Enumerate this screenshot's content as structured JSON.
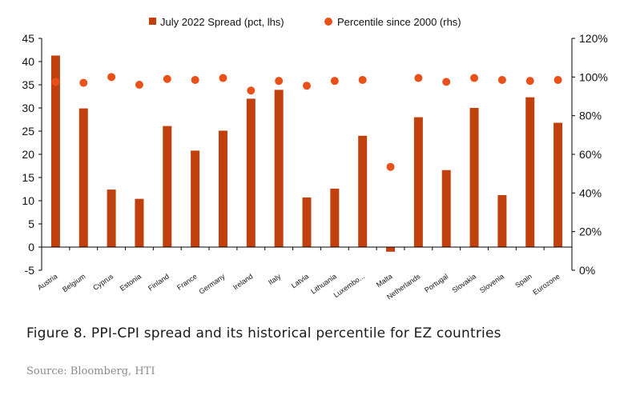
{
  "chart_data": {
    "type": "bar",
    "categories": [
      "Austria",
      "Belgium",
      "Cyprus",
      "Estonia",
      "Finland",
      "France",
      "Germany",
      "Ireland",
      "Italy",
      "Latvia",
      "Lithuania",
      "Luxembo...",
      "Malta",
      "Netherlands",
      "Portugal",
      "Slovakia",
      "Slovenia",
      "Spain",
      "Eurozone"
    ],
    "series": [
      {
        "name": "July 2022 Spread (pct, lhs)",
        "type": "bar",
        "axis": "left",
        "color": "#C0400E",
        "values": [
          41.3,
          29.9,
          12.4,
          10.4,
          26.1,
          20.8,
          25.1,
          32.0,
          33.9,
          10.7,
          12.6,
          24.0,
          -1.0,
          28.0,
          16.6,
          30.0,
          11.2,
          32.3,
          26.8
        ]
      },
      {
        "name": "Percentile since 2000 (rhs)",
        "type": "scatter",
        "axis": "right",
        "color": "#E8511A",
        "values": [
          97.5,
          97,
          100,
          96,
          99,
          98.5,
          99.5,
          93,
          98,
          95.5,
          98,
          98.5,
          53.5,
          99.5,
          97.5,
          99.5,
          98.5,
          98,
          98.5
        ]
      }
    ],
    "ylim": [
      -5,
      45
    ],
    "y_ticks": [
      -5,
      0,
      5,
      10,
      15,
      20,
      25,
      30,
      35,
      40,
      45
    ],
    "y2lim": [
      0,
      120
    ],
    "y2_ticks": [
      "0%",
      "20%",
      "40%",
      "60%",
      "80%",
      "100%",
      "120%"
    ],
    "grid": false,
    "legend_position": "top"
  },
  "caption": {
    "title": "Figure 8. PPI-CPI spread and its historical percentile for EZ countries",
    "source": "Source: Bloomberg, HTI"
  }
}
